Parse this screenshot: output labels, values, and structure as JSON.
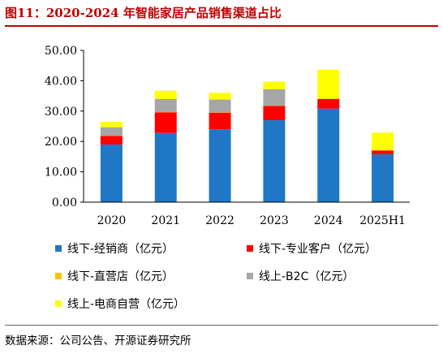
{
  "figure": {
    "title": "图11：2020-2024 年智能家居产品销售渠道占比",
    "source": "数据来源：公司公告、开源证券研究所"
  },
  "colors": {
    "accent": "#c00000",
    "series": [
      "#1f77c6",
      "#ff0000",
      "#ffc000",
      "#a6a6a6",
      "#ffff00"
    ]
  },
  "chart_data": {
    "type": "bar",
    "stacked": true,
    "categories": [
      "2020",
      "2021",
      "2022",
      "2023",
      "2024",
      "2025H1"
    ],
    "series": [
      {
        "name": "线下-经销商（亿元）",
        "values": [
          19.0,
          22.8,
          24.0,
          27.0,
          30.8,
          15.8
        ]
      },
      {
        "name": "线下-专业客户（亿元）",
        "values": [
          2.8,
          6.8,
          5.5,
          4.7,
          3.2,
          1.2
        ]
      },
      {
        "name": "线下-直营店（亿元）",
        "values": [
          0.1,
          0.1,
          0.1,
          0.1,
          0.1,
          0.1
        ]
      },
      {
        "name": "线上-B2C（亿元）",
        "values": [
          2.8,
          4.3,
          4.2,
          5.4,
          0.0,
          0.0
        ]
      },
      {
        "name": "线上-电商自营（亿元）",
        "values": [
          1.8,
          2.7,
          2.2,
          2.5,
          9.5,
          5.8
        ]
      }
    ],
    "ylim": [
      0,
      50
    ],
    "yticks": [
      "0.00",
      "10.00",
      "20.00",
      "30.00",
      "40.00",
      "50.00"
    ],
    "xlabel": "",
    "ylabel": "",
    "grid": false,
    "legend_position": "bottom"
  }
}
